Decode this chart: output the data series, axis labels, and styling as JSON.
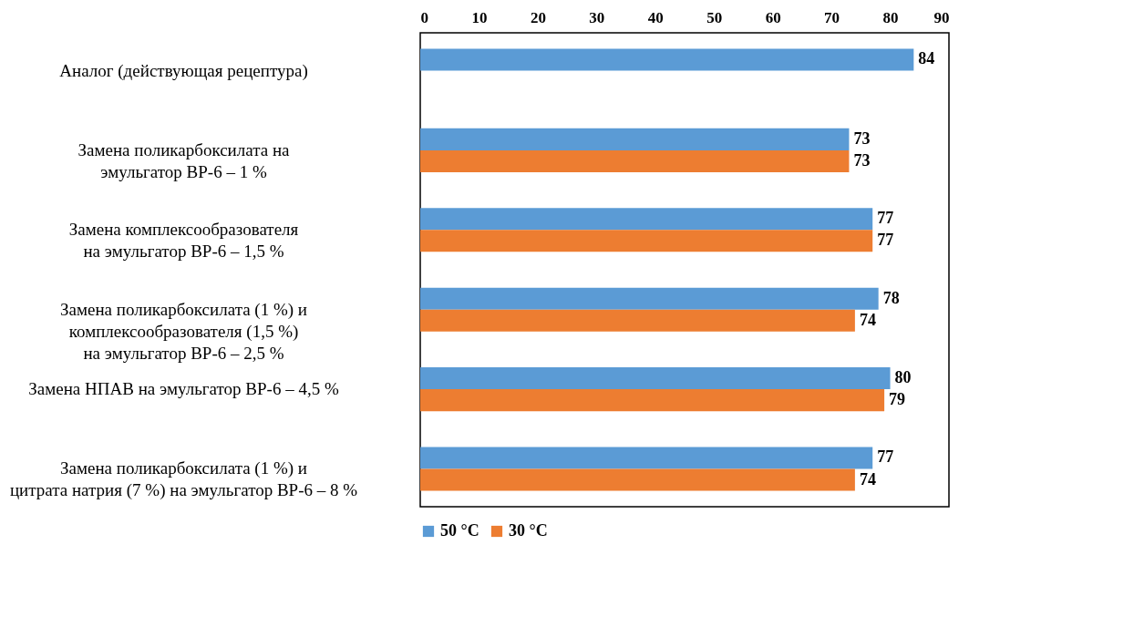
{
  "chart_data": {
    "type": "bar",
    "orientation": "horizontal",
    "categories": [
      "Аналог (действующая рецептура)",
      "Замена поликарбоксилата на\nэмульгатор ВР-6 – 1 %",
      "Замена комплексообразователя\nна эмульгатор ВР-6 – 1,5 %",
      "Замена поликарбоксилата (1 %) и\nкомплексообразователя (1,5 %)\nна эмульгатор ВР-6 – 2,5 %",
      "Замена НПАВ на эмульгатор ВР-6 – 4,5 %",
      "Замена поликарбоксилата (1 %) и\nцитрата натрия (7 %) на эмульгатор ВР-6 – 8 %"
    ],
    "series": [
      {
        "name": "50 °C",
        "color": "#5b9bd5",
        "values": [
          84,
          73,
          77,
          78,
          80,
          77
        ]
      },
      {
        "name": "30 °C",
        "color": "#ed7d31",
        "values": [
          null,
          73,
          77,
          74,
          79,
          74
        ]
      }
    ],
    "xlim": [
      0,
      90
    ],
    "xticks": [
      0,
      10,
      20,
      30,
      40,
      50,
      60,
      70,
      80,
      90
    ],
    "data_labels": true,
    "grid": false,
    "legend": "bottom"
  }
}
